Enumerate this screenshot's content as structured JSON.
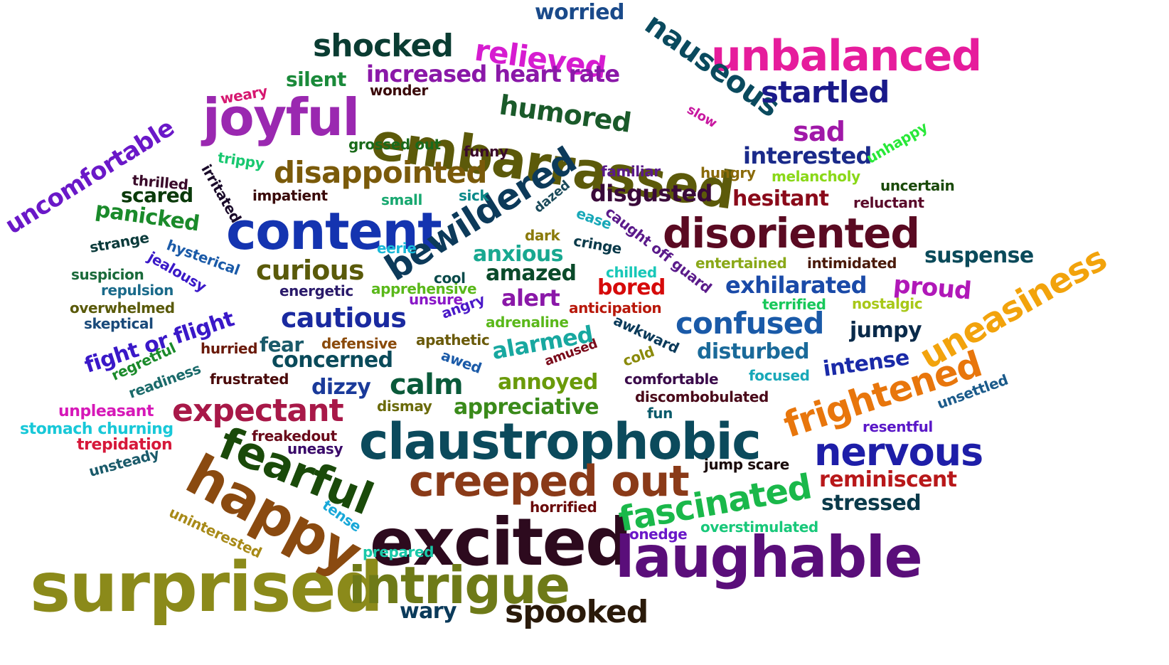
{
  "words": [
    {
      "text": "surprised",
      "color": "#8b8a1a"
    },
    {
      "text": "excited",
      "color": "#2d0a1e"
    },
    {
      "text": "claustrophobic",
      "color": "#0b4a5c"
    },
    {
      "text": "laughable",
      "color": "#5a0e7a"
    },
    {
      "text": "happy",
      "color": "#8a4a10"
    },
    {
      "text": "intrigue",
      "color": "#6e7a18"
    },
    {
      "text": "embarrassed",
      "color": "#5c5a0a"
    },
    {
      "text": "content",
      "color": "#1434b0"
    },
    {
      "text": "joyful",
      "color": "#9a28b0"
    },
    {
      "text": "unbalanced",
      "color": "#e61c9c"
    },
    {
      "text": "fearful",
      "color": "#1a4a0a"
    },
    {
      "text": "creeped out",
      "color": "#8a3a18"
    },
    {
      "text": "disoriented",
      "color": "#5a0a22"
    },
    {
      "text": "bewildered",
      "color": "#0c3a5a"
    },
    {
      "text": "nervous",
      "color": "#1e1ea8"
    },
    {
      "text": "frightened",
      "color": "#e8760c"
    },
    {
      "text": "fascinated",
      "color": "#1ab84a"
    },
    {
      "text": "uneasiness",
      "color": "#f2a30c"
    },
    {
      "text": "nauseous",
      "color": "#0a4a5e"
    },
    {
      "text": "expectant",
      "color": "#a81848"
    },
    {
      "text": "shocked",
      "color": "#0a3c32"
    },
    {
      "text": "relieved",
      "color": "#d61cd0"
    },
    {
      "text": "spooked",
      "color": "#2a1a0a"
    },
    {
      "text": "disappointed",
      "color": "#7a5a0a"
    },
    {
      "text": "humored",
      "color": "#1a5a2a"
    },
    {
      "text": "confused",
      "color": "#1a5aa8"
    },
    {
      "text": "startled",
      "color": "#1a1a8a"
    },
    {
      "text": "uncomfortable",
      "color": "#6a18c8"
    },
    {
      "text": "curious",
      "color": "#5a5a0a"
    },
    {
      "text": "cautious",
      "color": "#1a2aa0"
    },
    {
      "text": "calm",
      "color": "#0a5a3a"
    },
    {
      "text": "increased heart rate",
      "color": "#8a18a8"
    },
    {
      "text": "worried",
      "color": "#1a4a8a"
    },
    {
      "text": "sad",
      "color": "#a018a8"
    },
    {
      "text": "interested",
      "color": "#1a2a8a"
    },
    {
      "text": "exhilarated",
      "color": "#1a4aa8"
    },
    {
      "text": "disgusted",
      "color": "#3a0a3a"
    },
    {
      "text": "hesitant",
      "color": "#8a0a1a"
    },
    {
      "text": "suspense",
      "color": "#0a4a5a"
    },
    {
      "text": "proud",
      "color": "#b018b8"
    },
    {
      "text": "fight or flight",
      "color": "#3a18c8"
    },
    {
      "text": "alarmed",
      "color": "#18a8a0"
    },
    {
      "text": "panicked",
      "color": "#1a8a2a"
    },
    {
      "text": "amazed",
      "color": "#0a4a2a"
    },
    {
      "text": "anxious",
      "color": "#18a890"
    },
    {
      "text": "alert",
      "color": "#8a18a8"
    },
    {
      "text": "bored",
      "color": "#d60a0a"
    },
    {
      "text": "disturbed",
      "color": "#1a6a9a"
    },
    {
      "text": "intense",
      "color": "#1a2aa8"
    },
    {
      "text": "jumpy",
      "color": "#0a2a4a"
    },
    {
      "text": "concerned",
      "color": "#0a4a5a"
    },
    {
      "text": "dizzy",
      "color": "#1a3a9a"
    },
    {
      "text": "annoyed",
      "color": "#6a9a0a"
    },
    {
      "text": "appreciative",
      "color": "#3a8a1a"
    },
    {
      "text": "reminiscent",
      "color": "#b8181a"
    },
    {
      "text": "stressed",
      "color": "#0a3a4a"
    },
    {
      "text": "scared",
      "color": "#0a3a0a"
    },
    {
      "text": "fear",
      "color": "#1a5a6a"
    },
    {
      "text": "silent",
      "color": "#1a8a3a"
    },
    {
      "text": "wary",
      "color": "#0a3a5a"
    },
    {
      "text": "weary",
      "color": "#d61870"
    },
    {
      "text": "wonder",
      "color": "#3a0a0a"
    },
    {
      "text": "grossed out",
      "color": "#1a6a1a"
    },
    {
      "text": "funny",
      "color": "#3a0a2a"
    },
    {
      "text": "slow",
      "color": "#c818a0"
    },
    {
      "text": "trippy",
      "color": "#18c870"
    },
    {
      "text": "thrilled",
      "color": "#3a0a2a"
    },
    {
      "text": "irritated",
      "color": "#1a0a2a"
    },
    {
      "text": "impatient",
      "color": "#3a0a0a"
    },
    {
      "text": "small",
      "color": "#18a870"
    },
    {
      "text": "sick",
      "color": "#0a8a8a"
    },
    {
      "text": "familiar",
      "color": "#5a1a8a"
    },
    {
      "text": "hungry",
      "color": "#8a6a0a"
    },
    {
      "text": "melancholy",
      "color": "#8ad818"
    },
    {
      "text": "unhappy",
      "color": "#28e838"
    },
    {
      "text": "uncertain",
      "color": "#1a4a0a"
    },
    {
      "text": "reluctant",
      "color": "#5a0a2a"
    },
    {
      "text": "dazed",
      "color": "#1a4a5a"
    },
    {
      "text": "ease",
      "color": "#18a8b8"
    },
    {
      "text": "caught off guard",
      "color": "#5a1a8a"
    },
    {
      "text": "dark",
      "color": "#8a7a0a"
    },
    {
      "text": "cringe",
      "color": "#0a3a4a"
    },
    {
      "text": "strange",
      "color": "#0a3a3a"
    },
    {
      "text": "hysterical",
      "color": "#1a5aa8"
    },
    {
      "text": "eerie",
      "color": "#18b8d8"
    },
    {
      "text": "suspicion",
      "color": "#1a6a3a"
    },
    {
      "text": "jealousy",
      "color": "#3a18c8"
    },
    {
      "text": "repulsion",
      "color": "#1a6a8a"
    },
    {
      "text": "energetic",
      "color": "#2a1a6a"
    },
    {
      "text": "apprehensive",
      "color": "#5ab81a"
    },
    {
      "text": "cool",
      "color": "#0a4a4a"
    },
    {
      "text": "unsure",
      "color": "#8a18c8"
    },
    {
      "text": "chilled",
      "color": "#18c8b8"
    },
    {
      "text": "entertained",
      "color": "#8aa818"
    },
    {
      "text": "intimidated",
      "color": "#4a1a0a"
    },
    {
      "text": "overwhelmed",
      "color": "#5a5a0a"
    },
    {
      "text": "skeptical",
      "color": "#1a4a7a"
    },
    {
      "text": "angry",
      "color": "#4a18c8"
    },
    {
      "text": "adrenaline",
      "color": "#5ab81a"
    },
    {
      "text": "anticipation",
      "color": "#b8180a"
    },
    {
      "text": "terrified",
      "color": "#18c85a"
    },
    {
      "text": "nostalgic",
      "color": "#a8c818"
    },
    {
      "text": "defensive",
      "color": "#8a4a0a"
    },
    {
      "text": "apathetic",
      "color": "#6a5a0a"
    },
    {
      "text": "awkward",
      "color": "#0a3a5a"
    },
    {
      "text": "awed",
      "color": "#1a5aa8"
    },
    {
      "text": "amused",
      "color": "#7a0a1a"
    },
    {
      "text": "cold",
      "color": "#8a8a0a"
    },
    {
      "text": "regretful",
      "color": "#1a8a2a"
    },
    {
      "text": "hurried",
      "color": "#6a1a0a"
    },
    {
      "text": "readiness",
      "color": "#1a6a6a"
    },
    {
      "text": "frustrated",
      "color": "#4a0a0a"
    },
    {
      "text": "comfortable",
      "color": "#3a0a4a"
    },
    {
      "text": "focused",
      "color": "#18a8b8"
    },
    {
      "text": "discombobulated",
      "color": "#4a0a1a"
    },
    {
      "text": "dismay",
      "color": "#6a6a0a"
    },
    {
      "text": "fun",
      "color": "#0a5a6a"
    },
    {
      "text": "unsettled",
      "color": "#1a5a8a"
    },
    {
      "text": "resentful",
      "color": "#5a18c8"
    },
    {
      "text": "unpleasant",
      "color": "#d618b8"
    },
    {
      "text": "stomach churning",
      "color": "#18c8d8"
    },
    {
      "text": "freakedout",
      "color": "#6a0a1a"
    },
    {
      "text": "trepidation",
      "color": "#d6183a"
    },
    {
      "text": "uneasy",
      "color": "#3a0a6a"
    },
    {
      "text": "unsteady",
      "color": "#1a5a6a"
    },
    {
      "text": "jump scare",
      "color": "#1a0a0a"
    },
    {
      "text": "horrified",
      "color": "#6a0a0a"
    },
    {
      "text": "tense",
      "color": "#18a8d8"
    },
    {
      "text": "uninterested",
      "color": "#a88a18"
    },
    {
      "text": "onedge",
      "color": "#6a18c8"
    },
    {
      "text": "overstimulated",
      "color": "#18c87a"
    },
    {
      "text": "prepared",
      "color": "#18c8a8"
    }
  ]
}
